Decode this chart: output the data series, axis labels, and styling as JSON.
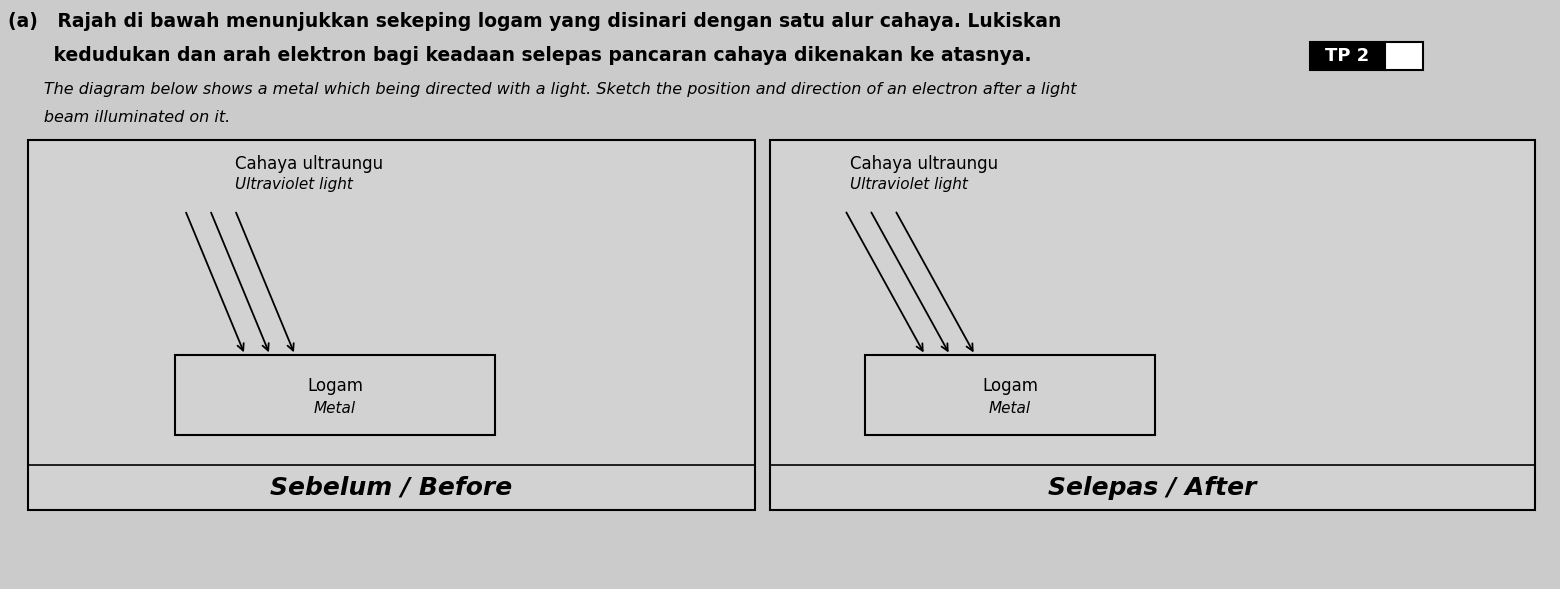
{
  "bg_color": "#cbcbcb",
  "panel_bg": "#d2d2d2",
  "title_line1": "(a)   Rajah di bawah menunjukkan sekeping logam yang disinari dengan satu alur cahaya. Lukiskan",
  "title_line2": "       kedudukan dan arah elektron bagi keadaan selepas pancaran cahaya dikenakan ke atasnya.",
  "subtitle_line1": "       The diagram below shows a metal which being directed with a light. Sketch the position and direction of an electron after a light",
  "subtitle_line2": "       beam illuminated on it.",
  "tp_label": "TP 2",
  "panel_left_label": "Sebelum / Before",
  "panel_right_label": "Selepas / After",
  "cahaya_label": "Cahaya ultraungu",
  "ultraviolet_label": "Ultraviolet light",
  "logam_label": "Logam",
  "metal_label": "Metal",
  "title_fontsize": 13.5,
  "subtitle_fontsize": 11.5
}
